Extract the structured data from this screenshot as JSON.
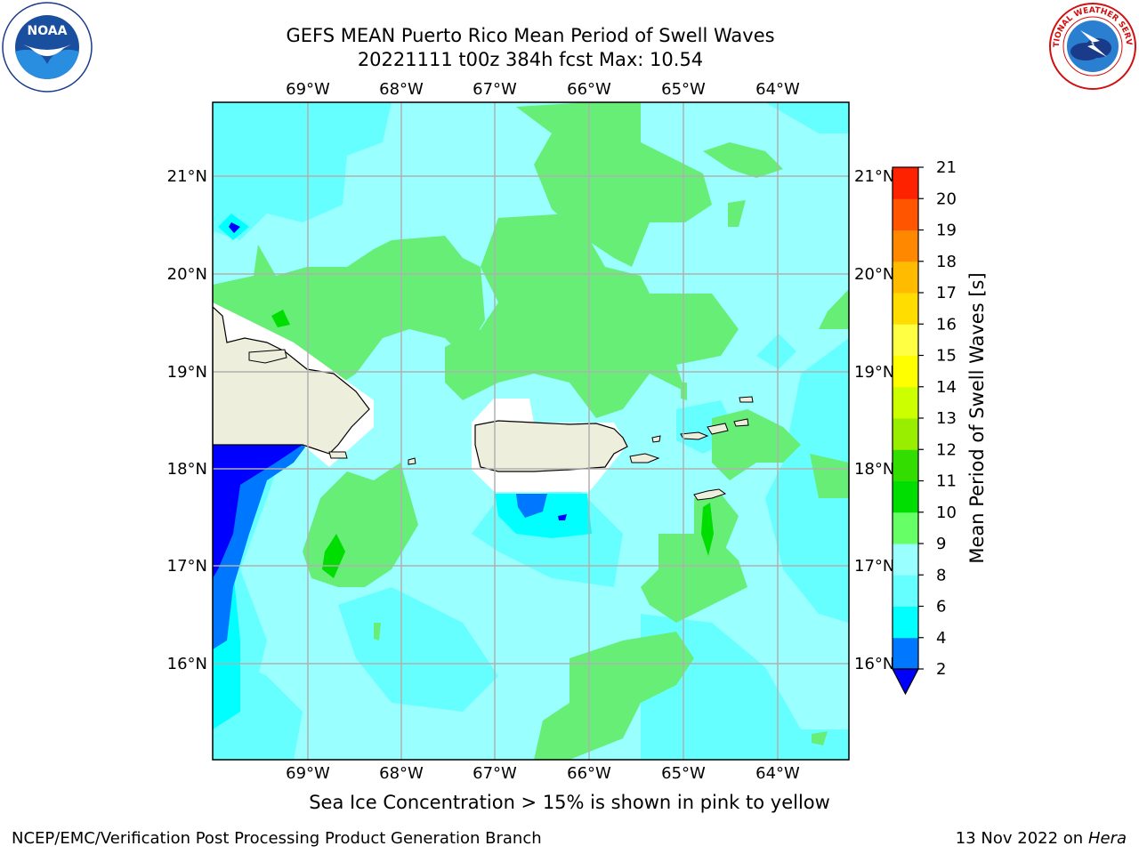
{
  "header": {
    "title_line1": "GEFS MEAN Puerto Rico Mean Period of Swell Waves",
    "title_line2": "20221111 t00z 384h fcst   Max: 10.54"
  },
  "map": {
    "lon_labels": [
      "69°W",
      "68°W",
      "67°W",
      "66°W",
      "65°W",
      "64°W"
    ],
    "lat_labels": [
      "21°N",
      "20°N",
      "19°N",
      "18°N",
      "17°N",
      "16°N"
    ],
    "land_color": "#eeeedd",
    "ocean_base_color": "#99ffff"
  },
  "colorbar": {
    "label": "Mean Period of Swell Waves [s]",
    "ticks": [
      "2",
      "4",
      "6",
      "8",
      "9",
      "10",
      "11",
      "12",
      "13",
      "14",
      "15",
      "16",
      "17",
      "18",
      "19",
      "20",
      "21"
    ],
    "colors": [
      "#0000ff",
      "#0077ff",
      "#00ffff",
      "#66ffff",
      "#99ffff",
      "#66ff66",
      "#00dd00",
      "#33dd00",
      "#99ee00",
      "#ccff00",
      "#ffff00",
      "#ffff44",
      "#ffdd00",
      "#ffbb00",
      "#ff8800",
      "#ff5500",
      "#ff2200",
      "#ff0000"
    ]
  },
  "footer": {
    "note": "Sea Ice Concentration > 15% is shown in pink to yellow",
    "credit": "NCEP/EMC/Verification Post Processing Product Generation Branch",
    "date": "13 Nov 2022 on",
    "host": "Hera"
  },
  "logos": {
    "left": "noaa-logo",
    "right": "nws-logo"
  }
}
